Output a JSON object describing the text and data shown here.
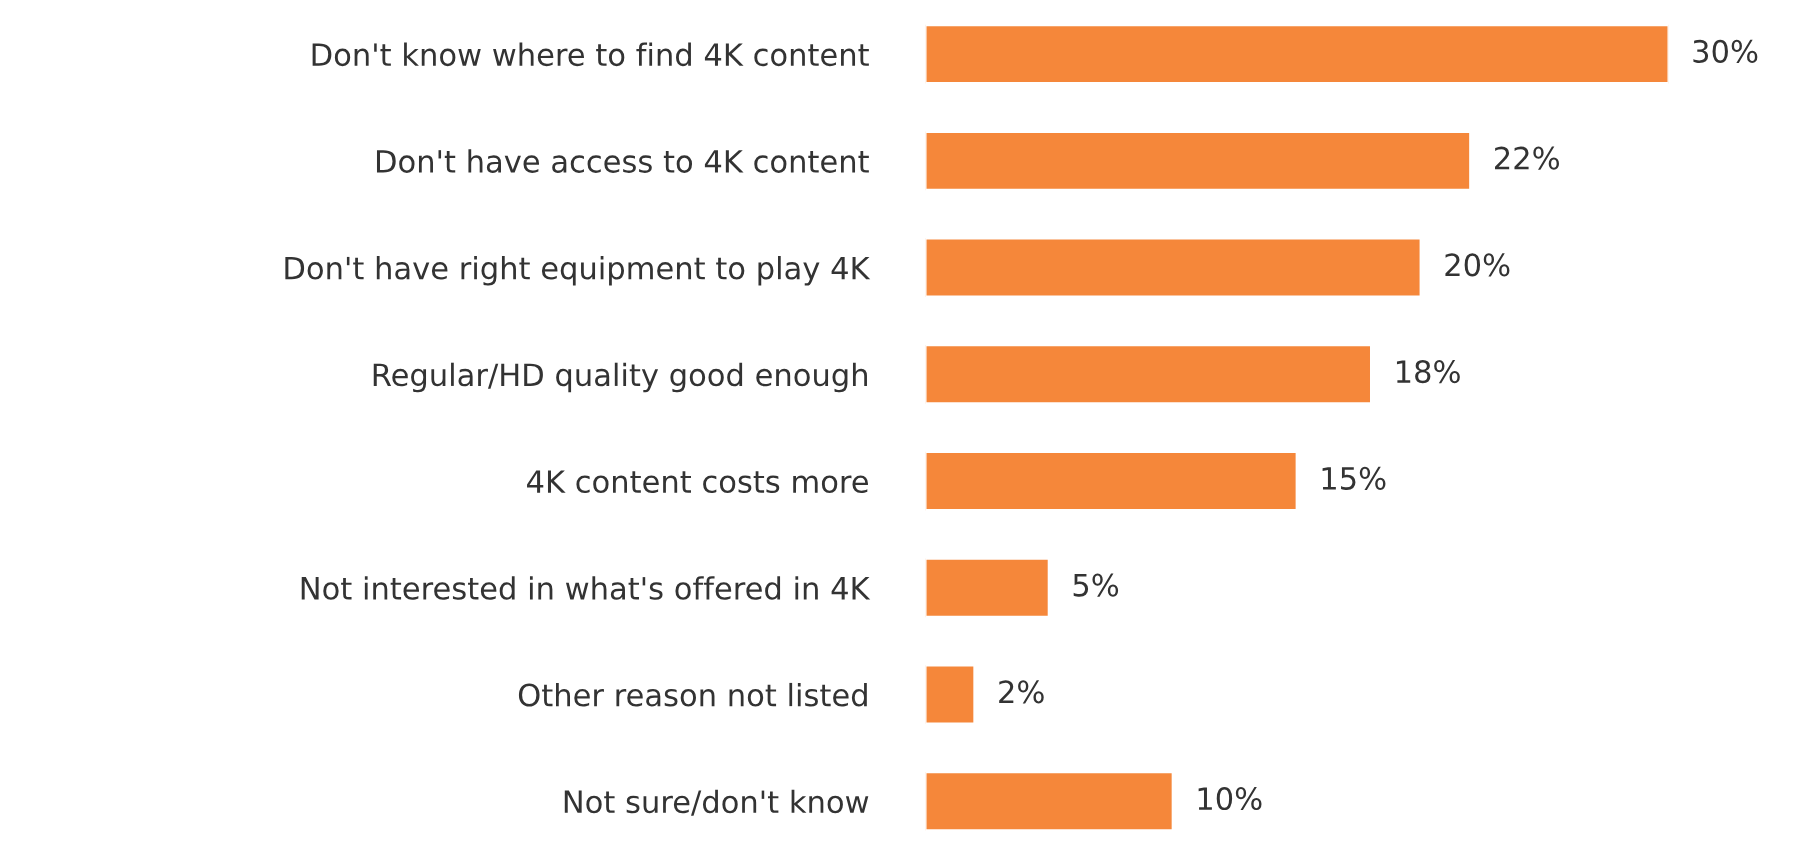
{
  "chart_data": {
    "type": "bar",
    "orientation": "horizontal",
    "categories": [
      "Don't know where to find 4K content",
      "Don't have access to 4K content",
      "Don't have right equipment to play 4K",
      "Regular/HD quality good enough",
      "4K content costs more",
      "Not interested in what's offered in 4K",
      "Other reason not listed",
      "Not sure/don't know"
    ],
    "values": [
      30,
      22,
      20,
      18,
      15,
      5,
      2,
      10
    ],
    "value_labels": [
      "30%",
      "22%",
      "20%",
      "18%",
      "15%",
      "5%",
      "2%",
      "10%"
    ],
    "color": "#f5873a",
    "grid": false,
    "legend": false
  }
}
